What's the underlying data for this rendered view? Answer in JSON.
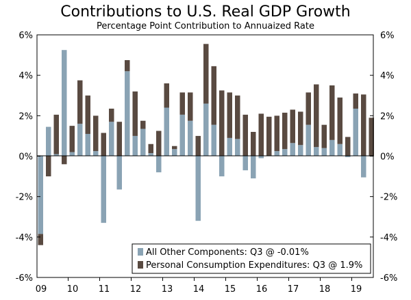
{
  "chart_data": {
    "type": "bar",
    "stacked": true,
    "title": "Contributions to U.S. Real GDP Growth",
    "subtitle": "Percentage Point Contribution to Annuaized Rate",
    "ylim": [
      -6,
      6
    ],
    "y_ticks": [
      6,
      4,
      2,
      0,
      -2,
      -4,
      -6
    ],
    "y_tick_labels": [
      "6%",
      "4%",
      "2%",
      "0%",
      "-2%",
      "-4%",
      "-6%"
    ],
    "x_tick_labels": [
      "09",
      "10",
      "11",
      "12",
      "13",
      "14",
      "15",
      "16",
      "17",
      "18",
      "19"
    ],
    "quarters": [
      "09Q1",
      "09Q2",
      "09Q3",
      "09Q4",
      "10Q1",
      "10Q2",
      "10Q3",
      "10Q4",
      "11Q1",
      "11Q2",
      "11Q3",
      "11Q4",
      "12Q1",
      "12Q2",
      "12Q3",
      "12Q4",
      "13Q1",
      "13Q2",
      "13Q3",
      "13Q4",
      "14Q1",
      "14Q2",
      "14Q3",
      "14Q4",
      "15Q1",
      "15Q2",
      "15Q3",
      "15Q4",
      "16Q1",
      "16Q2",
      "16Q3",
      "16Q4",
      "17Q1",
      "17Q2",
      "17Q3",
      "17Q4",
      "18Q1",
      "18Q2",
      "18Q3",
      "18Q4",
      "19Q1",
      "19Q2",
      "19Q3"
    ],
    "legend_position": "bottom-right",
    "series": [
      {
        "name": "All Other Components: Q3 @ -0.01%",
        "color": "#8aa3b4",
        "values": [
          -3.85,
          1.45,
          0.1,
          5.25,
          0.2,
          1.6,
          1.1,
          0.25,
          -3.3,
          1.7,
          -1.65,
          4.2,
          1.0,
          1.35,
          0.15,
          -0.8,
          2.4,
          0.35,
          2.05,
          1.75,
          -3.2,
          2.6,
          1.55,
          -1.0,
          0.9,
          0.85,
          -0.7,
          -1.1,
          -0.1,
          0.0,
          0.25,
          0.35,
          0.65,
          0.55,
          1.55,
          0.45,
          0.4,
          0.8,
          0.6,
          -0.05,
          2.35,
          -1.05,
          -0.01
        ]
      },
      {
        "name": "Personal Consumption Expenditures: Q3 @ 1.9%",
        "color": "#594a41",
        "values": [
          -0.55,
          -1.0,
          1.95,
          -0.4,
          1.3,
          2.15,
          1.9,
          1.75,
          1.15,
          0.65,
          1.7,
          0.55,
          2.2,
          0.4,
          0.45,
          1.25,
          1.2,
          0.15,
          1.1,
          1.4,
          1.0,
          2.95,
          2.9,
          3.25,
          2.25,
          2.15,
          2.05,
          1.2,
          2.1,
          1.95,
          1.75,
          1.8,
          1.65,
          1.65,
          1.6,
          3.1,
          1.15,
          2.7,
          2.3,
          0.95,
          0.75,
          3.05,
          1.9
        ]
      }
    ]
  }
}
